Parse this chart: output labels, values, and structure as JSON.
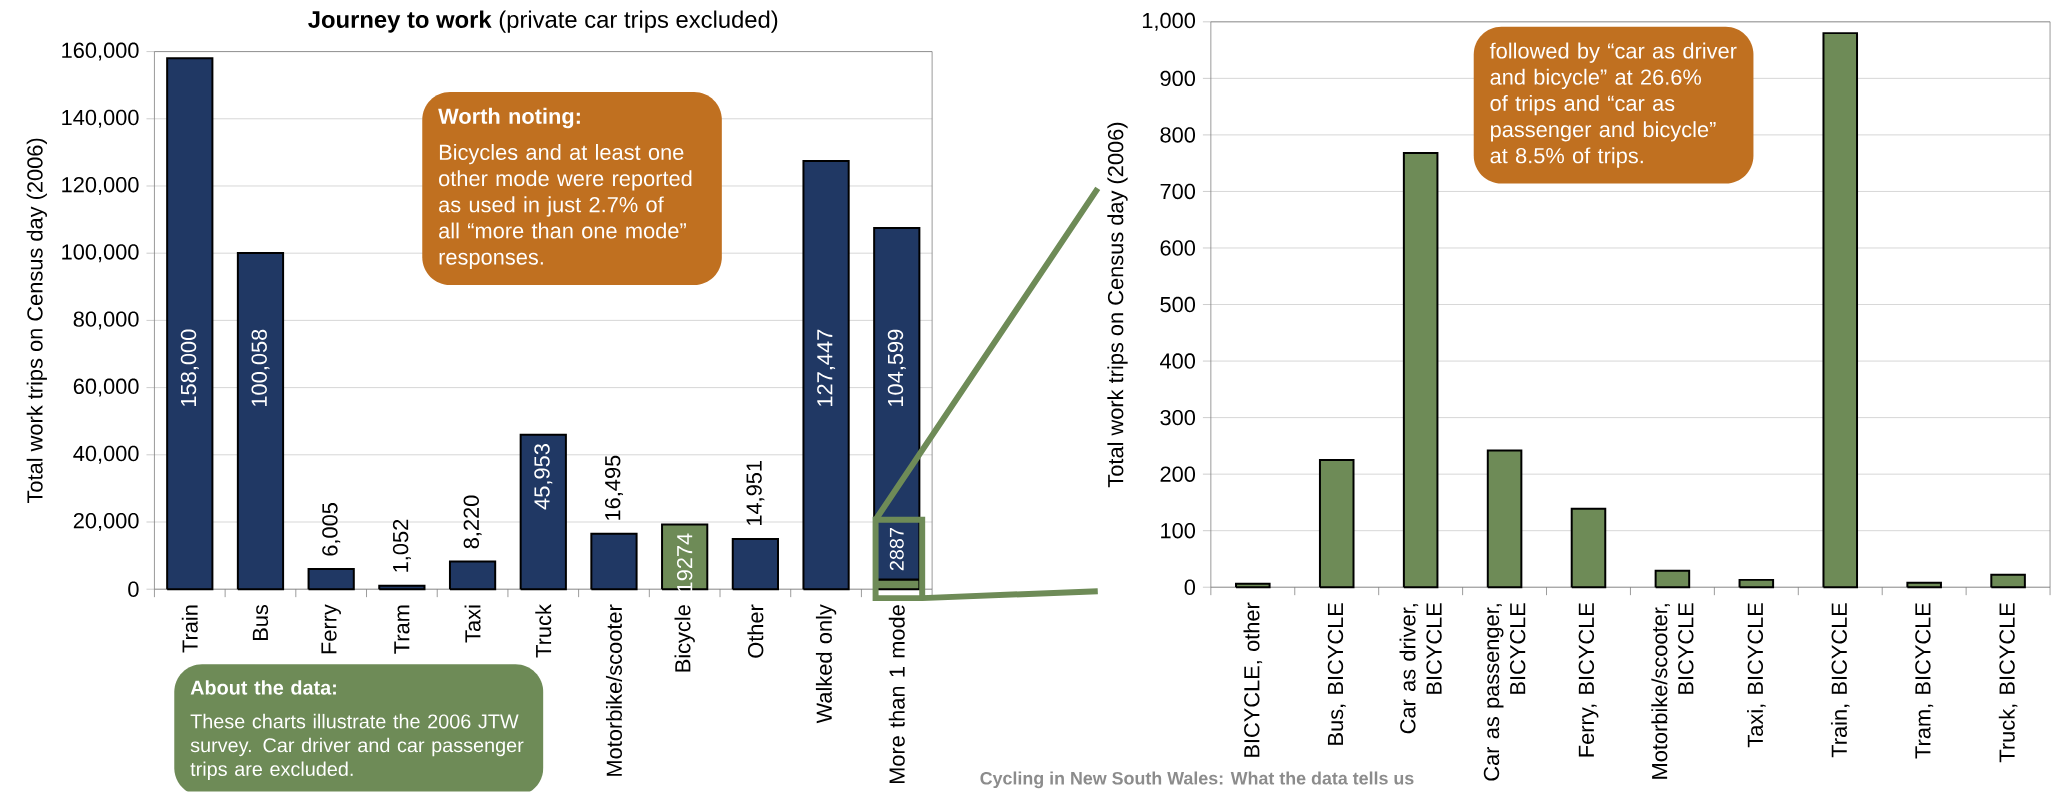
{
  "chart_data": [
    {
      "type": "bar",
      "title": "**Journey to work** (private car trips excluded)",
      "ylabel": "Total work trips on Census day (2006)",
      "categories": [
        "Train",
        "Bus",
        "Ferry",
        "Tram",
        "Taxi",
        "Truck",
        "Motorbike/scooter",
        "Bicycle",
        "Other",
        "Walked only",
        "More than 1 mode"
      ],
      "stacked": true,
      "series": [
        {
          "color": "#6E8B57",
          "values": [
            null,
            null,
            null,
            null,
            null,
            null,
            null,
            19274,
            null,
            null,
            2887
          ],
          "value_labels": [
            null,
            null,
            null,
            null,
            null,
            null,
            null,
            "19274",
            null,
            null,
            "2887"
          ]
        },
        {
          "color": "#203864",
          "values": [
            158000,
            100058,
            6005,
            1052,
            8220,
            45953,
            16495,
            null,
            14951,
            127447,
            104599
          ],
          "value_labels": [
            "158,000",
            "100,058",
            "6,005",
            "1,052",
            "8,220",
            "45,953",
            "16,495",
            null,
            "14,951",
            "127,447",
            "104,599"
          ]
        }
      ],
      "ylim": [
        0,
        160000
      ],
      "yticks": [
        0,
        {
          "value": 20000,
          "label": "20,000"
        },
        {
          "value": 40000,
          "label": "40,000"
        },
        {
          "value": 60000,
          "label": "60,000"
        },
        {
          "value": 80000,
          "label": "80,000"
        },
        {
          "value": 100000,
          "label": "100,000"
        },
        {
          "value": 120000,
          "label": "120,000"
        },
        {
          "value": 140000,
          "label": "140,000"
        },
        {
          "value": 160000,
          "label": "160,000"
        }
      ],
      "grid": "y",
      "annotations": [
        "Worth noting:",
        "Bicycles and at least one other mode were reported as used in just 2.7% of all “more than one mode” responses.",
        "About the data:",
        "These charts illustrate the 2006 JTW survey. Car driver and car passenger trips are excluded.",
        "Cycling in New South Wales: What the data tells us"
      ]
    },
    {
      "type": "bar",
      "ylabel": "Total work trips on Census day (2006)",
      "categories": [
        "BICYCLE, other",
        "Bus, BICYCLE",
        "Car as driver, BICYCLE",
        "Car as passenger, BICYCLE",
        "Ferry, BICYCLE",
        "Motorbike/scooter, BICYCLE",
        "Taxi, BICYCLE",
        "Train, BICYCLE",
        "Tram, BICYCLE",
        "Truck, BICYCLE"
      ],
      "values": [
        6,
        225,
        768,
        242,
        139,
        29,
        13,
        980,
        8,
        22
      ],
      "color": "#6E8B57",
      "ylim": [
        0,
        1000
      ],
      "yticks": [
        0,
        100,
        200,
        300,
        400,
        500,
        600,
        700,
        800,
        900,
        {
          "value": 1000,
          "label": "1,000"
        }
      ],
      "grid": "y",
      "annotations": [
        "followed by “car as driver and bicycle” at 26.6% of trips and “car as passenger and bicycle” at 8.5% of trips."
      ]
    }
  ]
}
